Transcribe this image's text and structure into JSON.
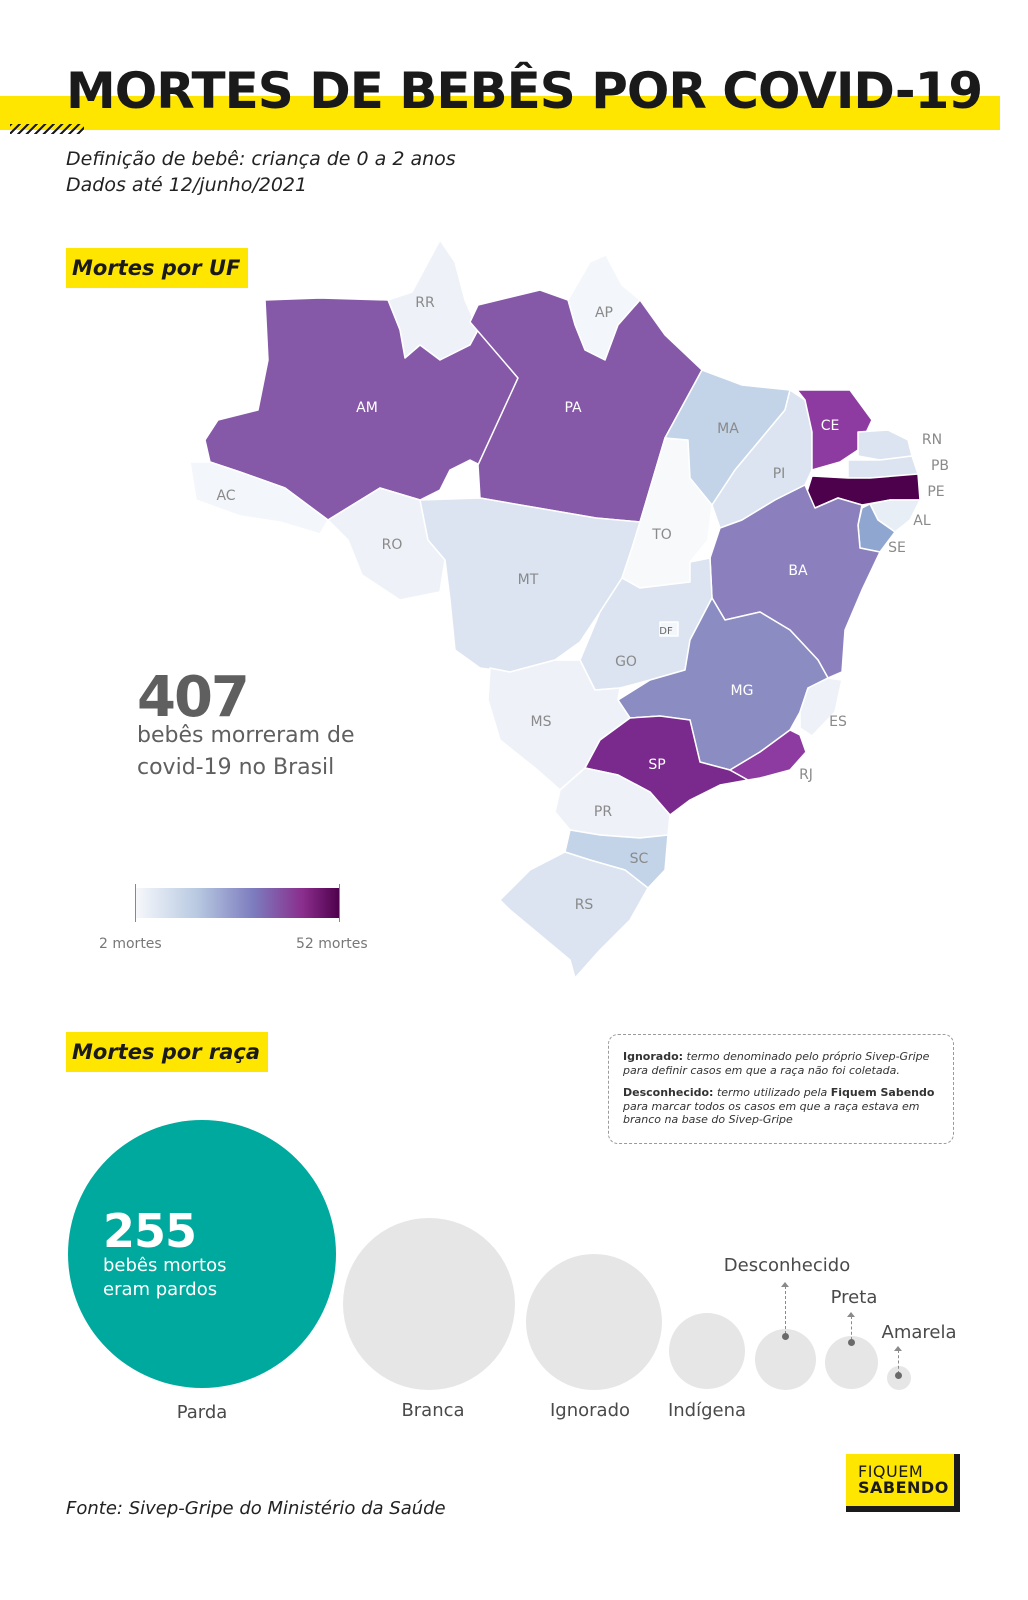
{
  "header": {
    "title": "MORTES DE BEBÊS POR COVID-19",
    "subtitle_line1": "Definição de bebê: criança de 0 a 2 anos",
    "subtitle_line2": "Dados até 12/junho/2021"
  },
  "map_section": {
    "label": "Mortes por UF",
    "total_deaths": "407",
    "total_caption_line1": "bebês morreram de",
    "total_caption_line2": "covid-19 no Brasil",
    "legend": {
      "min_label": "2 mortes",
      "max_label": "52 mortes",
      "min_value": 2,
      "max_value": 52
    },
    "states": [
      "AM",
      "PA",
      "RR",
      "AP",
      "AC",
      "RO",
      "MT",
      "TO",
      "MA",
      "PI",
      "CE",
      "RN",
      "PB",
      "PE",
      "AL",
      "SE",
      "BA",
      "GO",
      "DF",
      "MG",
      "ES",
      "MS",
      "SP",
      "RJ",
      "PR",
      "SC",
      "RS"
    ],
    "colors": {
      "lightest": "#f2f6fa",
      "light": "#dbe4f0",
      "light_blue": "#c3d3e8",
      "mid_blue": "#8fa6d0",
      "mid_purple": "#8b80bd",
      "purple": "#8558a8",
      "dark_purple": "#7a2a8c",
      "darkest": "#4d004b"
    }
  },
  "race_section": {
    "label": "Mortes por raça",
    "highlight_value": "255",
    "highlight_caption_line1": "bebês mortos",
    "highlight_caption_line2": "eram pardos",
    "categories": [
      "Parda",
      "Branca",
      "Ignorado",
      "Indígena",
      "Desconhecido",
      "Preta",
      "Amarela"
    ],
    "colors": {
      "highlight": "#00a99d",
      "others": "#e6e6e6"
    },
    "note": {
      "ignorado_term": "Ignorado:",
      "ignorado_text": "termo denominado pelo próprio Sivep-Gripe para definir casos em que a raça não foi coletada.",
      "desconhecido_term": "Desconhecido:",
      "desconhecido_text_1": "termo utilizado pela",
      "desconhecido_brand": "Fiquem Sabendo",
      "desconhecido_text_2": "para marcar todos os casos em que a raça estava em branco na base do Sivep-Gripe"
    }
  },
  "footer": {
    "source": "Fonte: Sivep-Gripe do Ministério da Saúde",
    "logo_line1": "FIQUEM",
    "logo_line2": "SABENDO"
  }
}
